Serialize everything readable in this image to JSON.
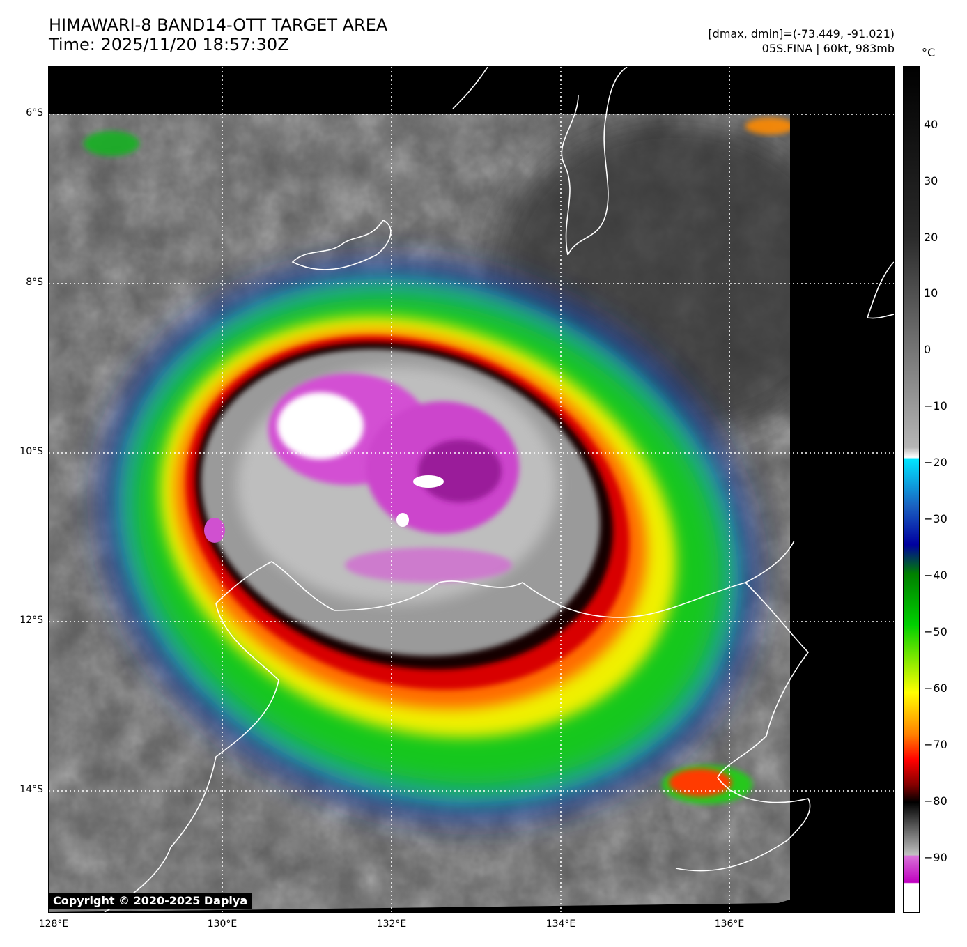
{
  "header": {
    "title": "HIMAWARI-8 BAND14-OTT TARGET AREA",
    "time": "Time: 2025/11/20 18:57:30Z",
    "dminmax": "[dmax, dmin]=(-73.449, -91.021)",
    "storm": "05S.FINA | 60kt, 983mb"
  },
  "axes": {
    "lat_labels": [
      "6°S",
      "8°S",
      "10°S",
      "12°S",
      "14°S"
    ],
    "lon_labels": [
      "128°E",
      "130°E",
      "132°E",
      "134°E",
      "136°E"
    ]
  },
  "colorbar": {
    "unit": "°C",
    "ticks": [
      "40",
      "30",
      "20",
      "10",
      "0",
      "−10",
      "−20",
      "−30",
      "−40",
      "−50",
      "−60",
      "−70",
      "−80",
      "−90"
    ],
    "colors": [
      "#000000",
      "#ffffff",
      "#00e5ff",
      "#0000a0",
      "#00d000",
      "#ffff00",
      "#ff0000",
      "#000000",
      "#c000c0"
    ]
  },
  "copyright": "Copyright © 2020-2025 Dapiya"
}
